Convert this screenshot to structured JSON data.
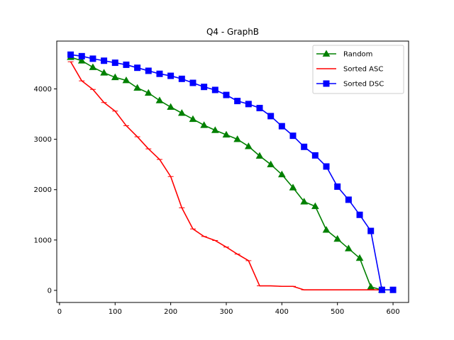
{
  "chart_data": {
    "type": "line",
    "title": "Q4 - GraphB",
    "xlabel": "",
    "ylabel": "",
    "xlim": [
      -5,
      628
    ],
    "ylim": [
      -240,
      4950
    ],
    "xticks": [
      0,
      100,
      200,
      300,
      400,
      500,
      600
    ],
    "yticks": [
      0,
      1000,
      2000,
      3000,
      4000
    ],
    "legend_position": "top-right",
    "series": [
      {
        "name": "Random",
        "color": "#008000",
        "marker": "triangle",
        "x": [
          20,
          40,
          60,
          80,
          100,
          120,
          140,
          160,
          180,
          200,
          220,
          240,
          260,
          280,
          300,
          320,
          340,
          360,
          380,
          400,
          420,
          440,
          460,
          480,
          500,
          520,
          540,
          560,
          580
        ],
        "y": [
          4630,
          4560,
          4430,
          4320,
          4230,
          4170,
          4020,
          3920,
          3770,
          3640,
          3520,
          3400,
          3280,
          3180,
          3090,
          3000,
          2860,
          2670,
          2500,
          2300,
          2040,
          1760,
          1670,
          1200,
          1020,
          830,
          640,
          70,
          10
        ]
      },
      {
        "name": "Sorted ASC",
        "color": "#ff0000",
        "marker": "tick",
        "x": [
          20,
          40,
          60,
          80,
          100,
          120,
          140,
          160,
          180,
          200,
          220,
          240,
          260,
          280,
          300,
          320,
          340,
          360,
          380,
          400,
          420,
          440,
          460,
          480,
          500,
          520,
          540,
          560,
          580
        ],
        "y": [
          4540,
          4160,
          3990,
          3730,
          3560,
          3270,
          3050,
          2810,
          2600,
          2260,
          1640,
          1220,
          1070,
          990,
          860,
          720,
          590,
          90,
          90,
          80,
          80,
          10,
          10,
          10,
          10,
          10,
          10,
          10,
          10
        ]
      },
      {
        "name": "Sorted DSC",
        "color": "#0000ff",
        "marker": "square",
        "x": [
          20,
          40,
          60,
          80,
          100,
          120,
          140,
          160,
          180,
          200,
          220,
          240,
          260,
          280,
          300,
          320,
          340,
          360,
          380,
          400,
          420,
          440,
          460,
          480,
          500,
          520,
          540,
          560,
          580,
          600
        ],
        "y": [
          4680,
          4650,
          4600,
          4560,
          4520,
          4480,
          4420,
          4360,
          4300,
          4260,
          4200,
          4120,
          4040,
          3980,
          3880,
          3760,
          3700,
          3620,
          3460,
          3260,
          3070,
          2850,
          2680,
          2460,
          2060,
          1800,
          1500,
          1180,
          10,
          10
        ]
      }
    ]
  }
}
